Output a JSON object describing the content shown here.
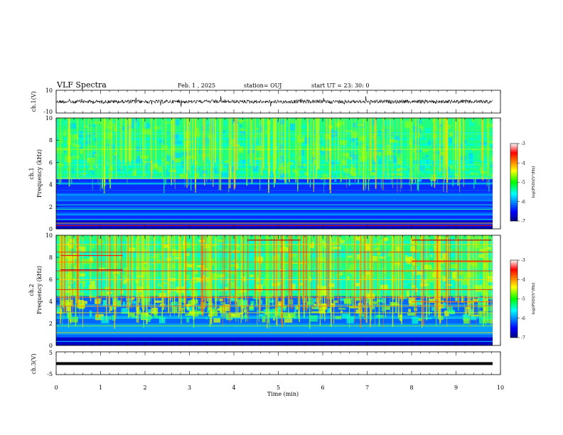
{
  "header": {
    "title": "VLF Spectra",
    "date": "Feb. 1  , 2025",
    "station": "station= OUJ",
    "start": "start  UT  =   23: 30: 0"
  },
  "chart_data": [
    {
      "type": "line",
      "panel": "ch1-waveform",
      "ylabel": "ch.1(V)",
      "ylim": [
        -10,
        10
      ],
      "y_ticks": [
        "10",
        "-10"
      ],
      "xlim": [
        0,
        10
      ]
    },
    {
      "type": "heatmap",
      "panel": "ch1-spectrogram",
      "ylabel_line1": "ch.1",
      "ylabel_line2": "Frequency (kHz)",
      "ylim": [
        0,
        10
      ],
      "y_ticks": [
        "0",
        "2",
        "4",
        "6",
        "8",
        "10"
      ],
      "xlim": [
        0,
        10
      ],
      "colorbar": {
        "ticks": [
          "-3",
          "-4",
          "-5",
          "-6",
          "-7"
        ],
        "label": "log(PSD)(V²/Hz)",
        "range": [
          -7,
          -3
        ]
      }
    },
    {
      "type": "heatmap",
      "panel": "ch2-spectrogram",
      "ylabel_line1": "ch.2",
      "ylabel_line2": "Frequency (kHz)",
      "ylim": [
        0,
        10
      ],
      "y_ticks": [
        "0",
        "2",
        "4",
        "6",
        "8",
        "10"
      ],
      "xlim": [
        0,
        10
      ],
      "colorbar": {
        "ticks": [
          "-3",
          "-4",
          "-5",
          "-6",
          "-7"
        ],
        "label": "log(PSD)(V²/Hz)",
        "range": [
          -7,
          -3
        ]
      }
    },
    {
      "type": "line",
      "panel": "ch3-waveform",
      "ylabel": "ch.3(V)",
      "ylim": [
        -5,
        5
      ],
      "y_ticks": [
        "5",
        "-5"
      ],
      "xlim": [
        0,
        10
      ],
      "xlabel": "Time (min)",
      "x_ticks": [
        "0",
        "1",
        "2",
        "3",
        "4",
        "5",
        "6",
        "7",
        "8",
        "9",
        "10"
      ]
    }
  ]
}
